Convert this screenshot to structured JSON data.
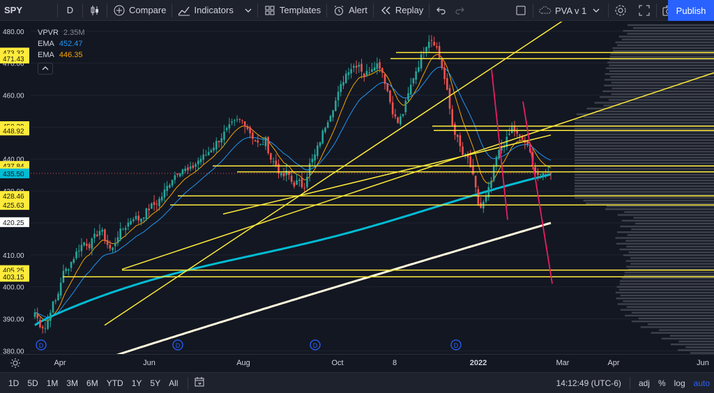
{
  "toolbar": {
    "symbol": "SPY",
    "interval": "D",
    "compare_label": "Compare",
    "indicators_label": "Indicators",
    "templates_label": "Templates",
    "alert_label": "Alert",
    "replay_label": "Replay",
    "layout_name": "PVA v 1",
    "publish_label": "Publish"
  },
  "legend": {
    "vpvr": {
      "name": "VPVR",
      "value": "2.35M"
    },
    "ema1": {
      "name": "EMA",
      "value": "452.47",
      "color": "#2196f3"
    },
    "ema2": {
      "name": "EMA",
      "value": "446.35",
      "color": "#f7a600"
    }
  },
  "colors": {
    "background": "#131722",
    "up_candle": "#26a69a",
    "down_candle": "#ef5350",
    "level_line": "#ffeb3b",
    "ema_fast": "#f7a600",
    "ema_mid": "#2196f3",
    "ema_200": "#00bcd4",
    "sma_long": "#fff8dc",
    "trend_pink": "#e91e63",
    "accent": "#2962ff"
  },
  "chart_data": {
    "type": "candlestick",
    "symbol": "SPY",
    "interval": "D",
    "ylim": [
      379,
      483
    ],
    "y_ticks": [
      "480.00",
      "470.00",
      "460.00",
      "450.00",
      "440.00",
      "430.00",
      "420.00",
      "410.00",
      "400.00",
      "390.00",
      "380.00"
    ],
    "x_labels": [
      "Apr",
      "Jun",
      "Aug",
      "Oct",
      "8",
      "2022",
      "Mar",
      "Apr",
      "Jun"
    ],
    "price_badges": [
      {
        "label": "473.32",
        "kind": "level"
      },
      {
        "label": "471.43",
        "kind": "level"
      },
      {
        "label": "450.29",
        "kind": "level"
      },
      {
        "label": "448.92",
        "kind": "level"
      },
      {
        "label": "437.84",
        "kind": "level"
      },
      {
        "label": "435.99",
        "kind": "level"
      },
      {
        "label": "435.50",
        "kind": "current"
      },
      {
        "label": "428.46",
        "kind": "level"
      },
      {
        "label": "425.63",
        "kind": "level"
      },
      {
        "label": "420.25",
        "kind": "ma"
      },
      {
        "label": "405.25",
        "kind": "level"
      },
      {
        "label": "403.15",
        "kind": "level"
      }
    ],
    "horizontal_levels": [
      473.32,
      471.43,
      450.29,
      448.92,
      437.84,
      435.99,
      428.46,
      425.63,
      405.25,
      403.15
    ],
    "current_price": 435.5,
    "dividend_markers": [
      "D",
      "D",
      "D",
      "D"
    ],
    "close_path": [
      392,
      388,
      387,
      394,
      396,
      404,
      406,
      409,
      412,
      414,
      413,
      416,
      418,
      414,
      411,
      416,
      418,
      420,
      422,
      421,
      423,
      425,
      426,
      428,
      431,
      434,
      436,
      437,
      436,
      438,
      440,
      441,
      443,
      445,
      447,
      449,
      451,
      452,
      452,
      449,
      446,
      444,
      446,
      440,
      438,
      434,
      436,
      432,
      433,
      431,
      438,
      441,
      446,
      451,
      455,
      459,
      464,
      468,
      469,
      470,
      466,
      468,
      470,
      469,
      463,
      456,
      451,
      454,
      460,
      466,
      470,
      475,
      478,
      476,
      470,
      462,
      451,
      446,
      441,
      440,
      433,
      424,
      427,
      432,
      440,
      444,
      446,
      450,
      447,
      446,
      443,
      437,
      434,
      436,
      435.5
    ]
  },
  "bottom": {
    "ranges": [
      "1D",
      "5D",
      "1M",
      "3M",
      "6M",
      "YTD",
      "1Y",
      "5Y",
      "All"
    ],
    "time": "14:12:49 (UTC-6)",
    "adj": "adj",
    "pct": "%",
    "log": "log",
    "auto": "auto"
  }
}
